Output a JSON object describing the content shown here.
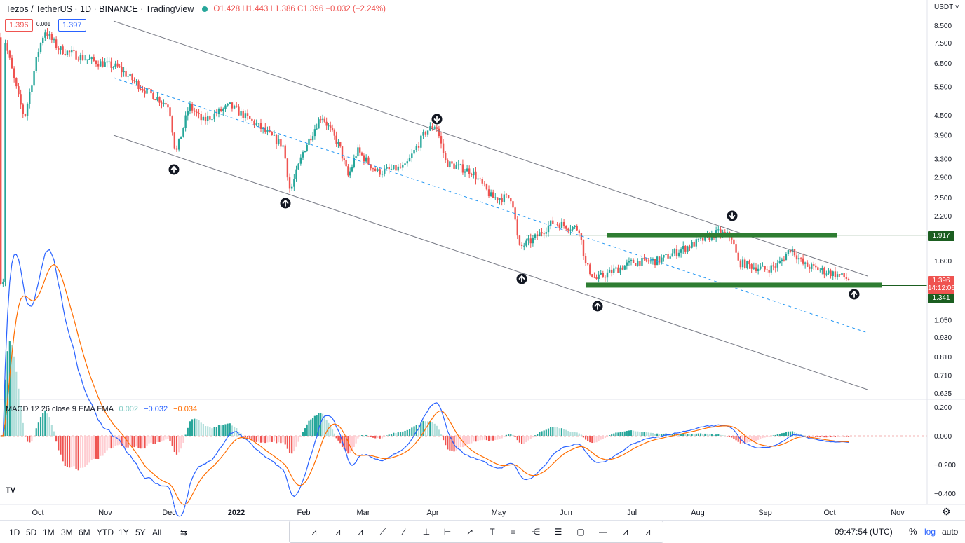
{
  "header": {
    "symbol": "Tezos / TetherUS · 1D · BINANCE · TradingView",
    "open": "O1.428",
    "high": "H1.443",
    "low": "L1.386",
    "close": "C1.396",
    "change": "−0.032 (−2.24%)",
    "bid": "1.396",
    "spread": "0.001",
    "ask": "1.397"
  },
  "currency": "USDT",
  "macd": {
    "label": "MACD 12 26 close 9 EMA EMA",
    "hist": "0.002",
    "macd": "−0.032",
    "signal": "−0.034"
  },
  "price_tags": {
    "resistance": "1.917",
    "last": "1.396",
    "countdown": "14:12:06",
    "support": "1.341"
  },
  "x_ticks": [
    "Oct",
    "Nov",
    "Dec",
    "2022",
    "Feb",
    "Mar",
    "Apr",
    "May",
    "Jun",
    "Jul",
    "Aug",
    "Sep",
    "Oct",
    "Nov"
  ],
  "y_ticks": [
    "8.500",
    "7.500",
    "6.500",
    "5.500",
    "4.500",
    "3.900",
    "3.300",
    "2.900",
    "2.500",
    "2.200",
    "1.600",
    "1.050",
    "0.930",
    "0.810",
    "0.710",
    "0.625"
  ],
  "macd_ticks": [
    "0.200",
    "0.000",
    "−0.200",
    "−0.400"
  ],
  "timeframes": [
    "1D",
    "5D",
    "1M",
    "3M",
    "6M",
    "YTD",
    "1Y",
    "5Y",
    "All"
  ],
  "drawing_tools": [
    "xabcd-icon",
    "abcd-icon",
    "elliott-icon",
    "pattern-icon",
    "trendline-icon",
    "price-range-icon",
    "date-range-icon",
    "ray-icon",
    "text-icon",
    "fib-icon",
    "pitchfork-icon",
    "channel-icon",
    "rectangle-icon",
    "horizontal-line-icon",
    "xwz-icon",
    "wxy-icon"
  ],
  "footer": {
    "time": "09:47:54 (UTC)",
    "percent": "%",
    "log": "log",
    "auto": "auto"
  },
  "colors": {
    "up": "#26a69a",
    "down": "#ef5350",
    "macd_line": "#2962ff",
    "signal_line": "#ff6d00",
    "zone": "#2e7d32"
  },
  "chart_data": {
    "type": "candlestick",
    "pair": "XTZ/USDT",
    "scale": "log",
    "ylim": [
      0.6,
      9.2
    ],
    "monthly_close_approx": [
      {
        "month": "Oct 2021",
        "close": 6.5
      },
      {
        "month": "Nov 2021",
        "close": 5.3
      },
      {
        "month": "Dec 2021",
        "close": 4.4
      },
      {
        "month": "Jan 2022",
        "close": 3.6
      },
      {
        "month": "Feb 2022",
        "close": 3.2
      },
      {
        "month": "Mar 2022",
        "close": 4.0
      },
      {
        "month": "Apr 2022",
        "close": 2.5
      },
      {
        "month": "May 2022",
        "close": 2.1
      },
      {
        "month": "Jun 2022",
        "close": 1.45
      },
      {
        "month": "Jul 2022",
        "close": 1.65
      },
      {
        "month": "Aug 2022",
        "close": 1.55
      },
      {
        "month": "Sep 2022",
        "close": 1.45
      },
      {
        "month": "Oct 2022",
        "close": 1.396
      }
    ],
    "resistance_level": 1.917,
    "support_level": 1.341,
    "last_price": 1.396,
    "macd_ylim": [
      -0.45,
      0.22
    ]
  }
}
